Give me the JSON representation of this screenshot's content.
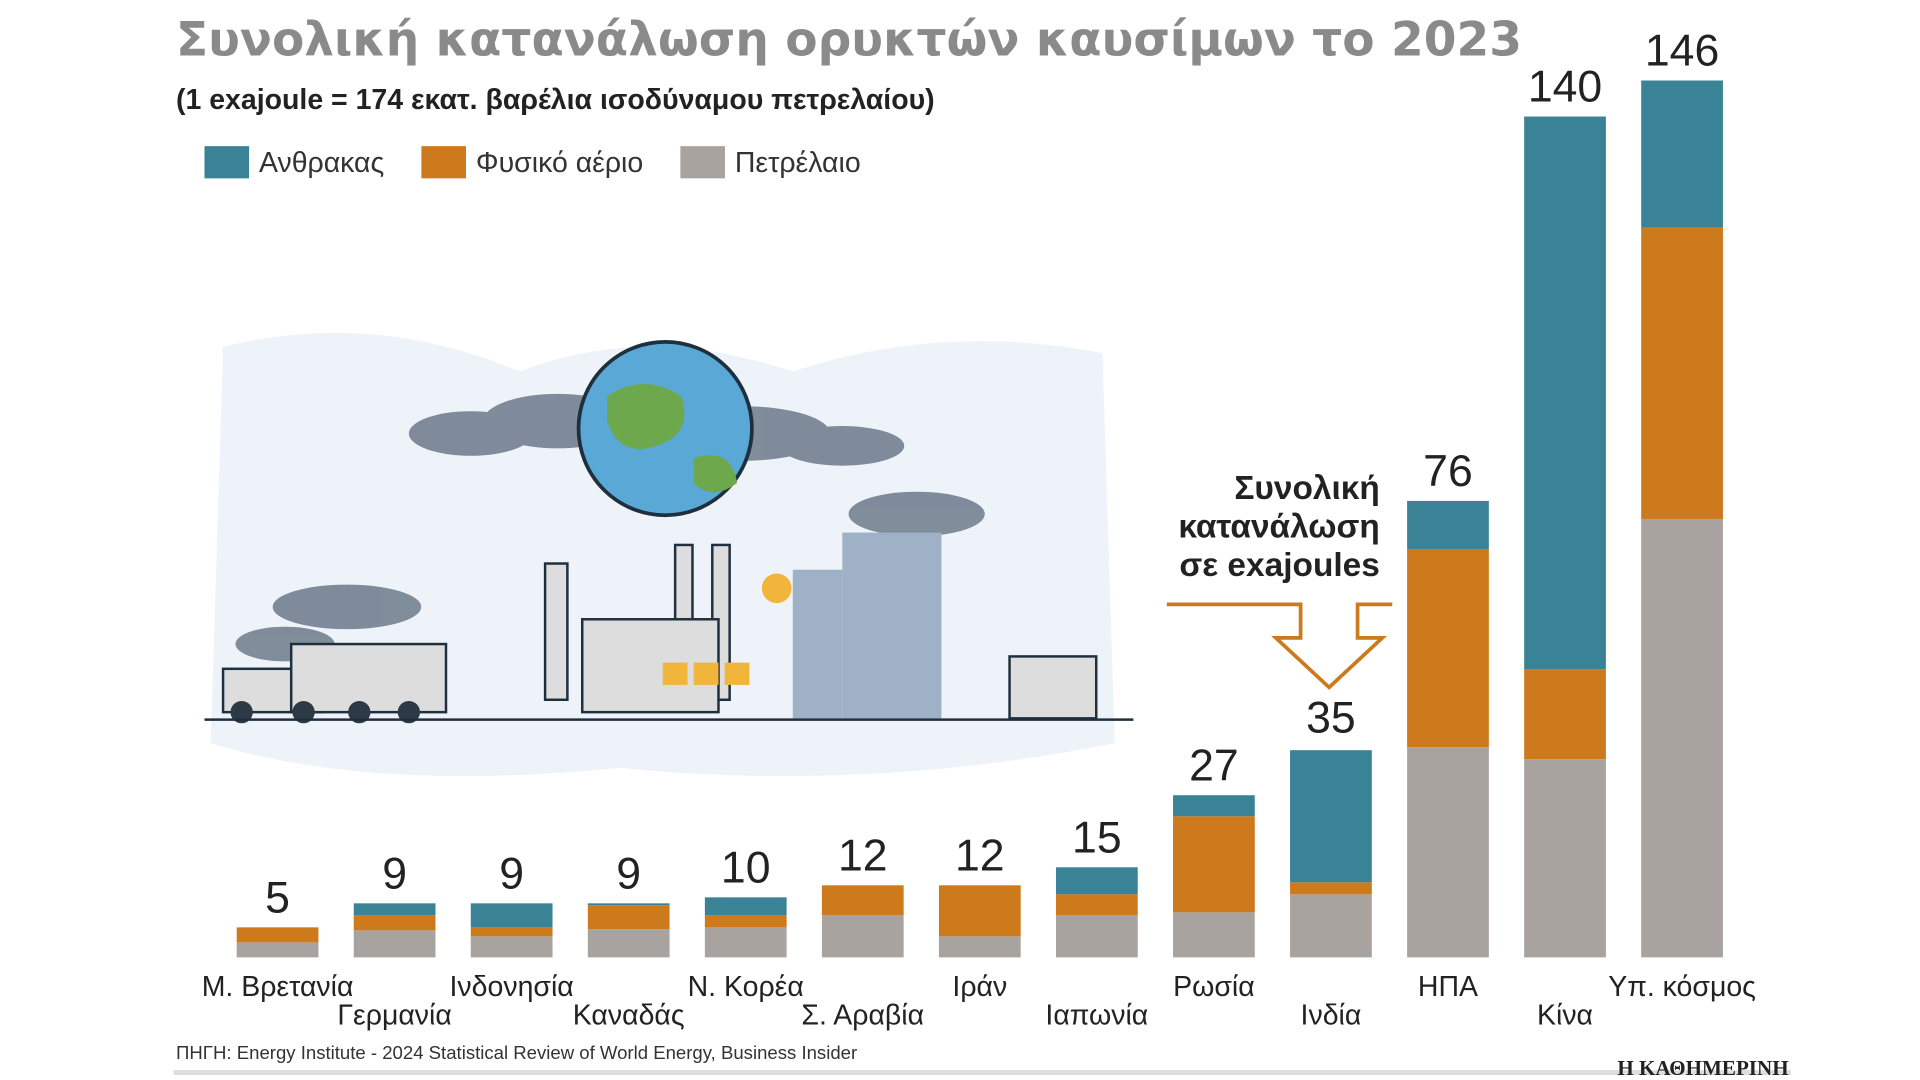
{
  "chart_data": {
    "type": "stacked_bar",
    "title": "Συνολική κατανάλωση ορυκτών καυσίμων το 2023",
    "subtitle": "(1 exajoule = 174 εκατ. βαρέλια ισοδύναμου πετρελαίου)",
    "annotation": [
      "Συνολική",
      "κατανάλωση",
      "σε exajoules"
    ],
    "source": "ΠΗΓΗ: Energy Institute - 2024 Statistical Review of World Energy, Business Insider",
    "brand": "Η ΚΑΘΗΜΕΡΙΝΗ",
    "categories": [
      "Μ. Βρετανία",
      "Γερμανία",
      "Ινδονησία",
      "Καναδάς",
      "Ν. Κορέα",
      "Σ. Αραβία",
      "Ιράν",
      "Ιαπωνία",
      "Ρωσία",
      "Ινδία",
      "ΗΠΑ",
      "Κίνα",
      "Υπ. κόσμος"
    ],
    "totals": [
      5,
      9,
      9,
      9,
      10,
      12,
      12,
      15,
      27,
      35,
      76,
      140,
      146
    ],
    "series": [
      {
        "name": "Πετρέλαιο",
        "color": "#a9a3a0",
        "values": [
          2.5,
          4.5,
          3.5,
          4.7,
          5,
          7,
          3.5,
          7,
          7.5,
          10.5,
          35,
          33,
          73
        ]
      },
      {
        "name": "Φυσικό αέριο",
        "color": "#cc7a1c",
        "values": [
          2.5,
          2.5,
          1.5,
          4,
          2,
          5,
          8.5,
          3.5,
          16,
          2,
          33,
          15,
          48.5
        ]
      },
      {
        "name": "Ανθρακας",
        "color": "#3a8396",
        "values": [
          0,
          2,
          4,
          0.3,
          3,
          0,
          0,
          4.5,
          3.5,
          22,
          8,
          92,
          24.5
        ]
      }
    ],
    "legend_order": [
      2,
      1,
      0
    ]
  }
}
